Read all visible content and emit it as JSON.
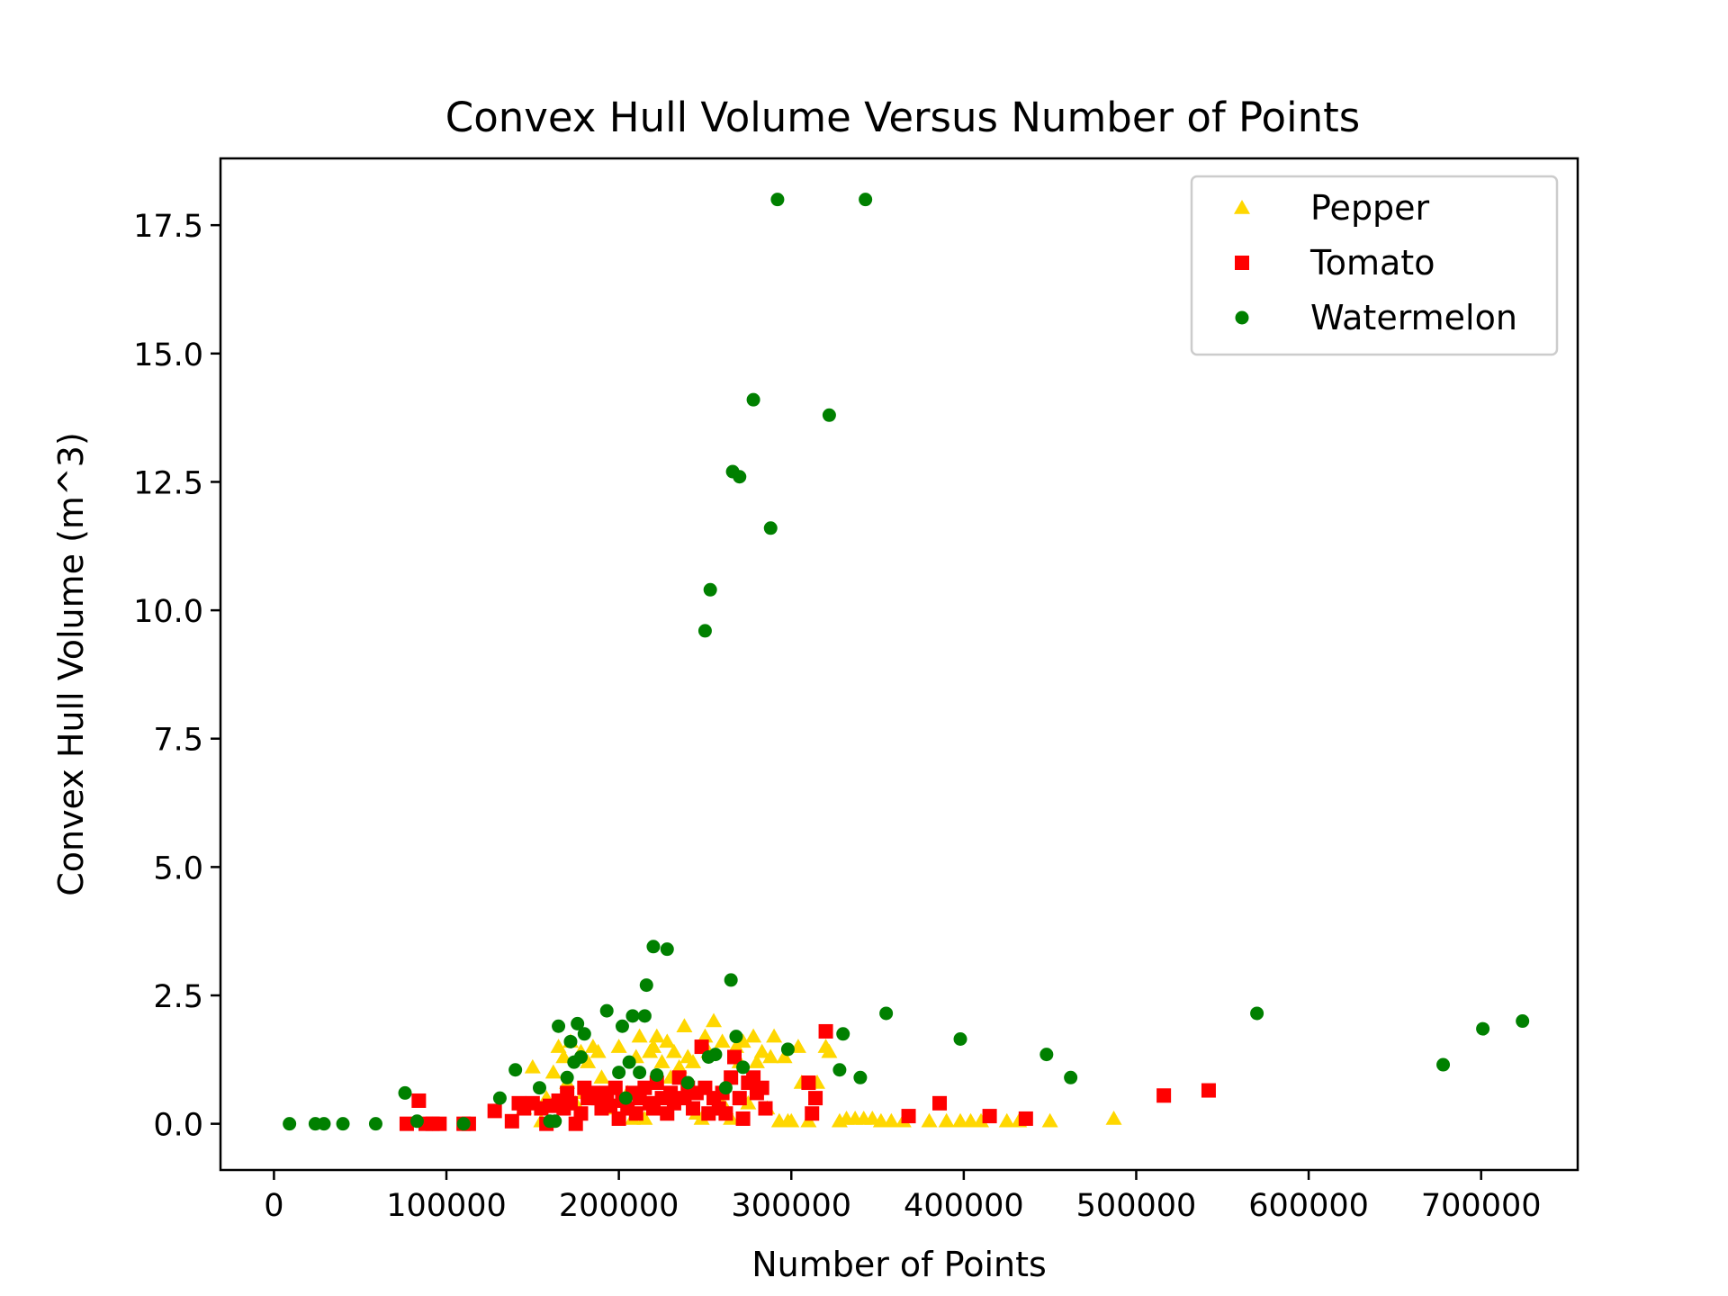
{
  "chart_data": {
    "type": "scatter",
    "title": "Convex Hull Volume Versus Number of Points",
    "xlabel": "Number of Points",
    "ylabel": "Convex Hull Volume (m^3)",
    "xlim": [
      -31000,
      756000
    ],
    "ylim": [
      -0.9,
      18.8
    ],
    "xticks": [
      0,
      100000,
      200000,
      300000,
      400000,
      500000,
      600000,
      700000
    ],
    "xtick_labels": [
      "0",
      "100000",
      "200000",
      "300000",
      "400000",
      "500000",
      "600000",
      "700000"
    ],
    "yticks": [
      0.0,
      2.5,
      5.0,
      7.5,
      10.0,
      12.5,
      15.0,
      17.5
    ],
    "ytick_labels": [
      "0.0",
      "2.5",
      "5.0",
      "7.5",
      "10.0",
      "12.5",
      "15.0",
      "17.5"
    ],
    "grid": false,
    "legend_position": "top-right",
    "series": [
      {
        "name": "Pepper",
        "marker": "triangle",
        "color": "#ffd700",
        "points": [
          [
            145000,
            0.3
          ],
          [
            150000,
            1.1
          ],
          [
            155000,
            0.05
          ],
          [
            158000,
            0.5
          ],
          [
            162000,
            1.0
          ],
          [
            165000,
            1.5
          ],
          [
            168000,
            1.3
          ],
          [
            170000,
            0.8
          ],
          [
            172000,
            1.6
          ],
          [
            175000,
            0.4
          ],
          [
            178000,
            1.4
          ],
          [
            180000,
            0.6
          ],
          [
            182000,
            1.2
          ],
          [
            185000,
            1.5
          ],
          [
            188000,
            1.4
          ],
          [
            190000,
            0.9
          ],
          [
            195000,
            0.3
          ],
          [
            200000,
            1.5
          ],
          [
            205000,
            0.6
          ],
          [
            208000,
            0.1
          ],
          [
            210000,
            1.3
          ],
          [
            212000,
            1.7
          ],
          [
            215000,
            0.1
          ],
          [
            218000,
            1.4
          ],
          [
            220000,
            1.5
          ],
          [
            222000,
            1.7
          ],
          [
            225000,
            1.2
          ],
          [
            228000,
            1.6
          ],
          [
            230000,
            0.9
          ],
          [
            232000,
            1.4
          ],
          [
            235000,
            1.1
          ],
          [
            238000,
            1.9
          ],
          [
            240000,
            1.3
          ],
          [
            243000,
            1.2
          ],
          [
            245000,
            0.2
          ],
          [
            248000,
            0.1
          ],
          [
            250000,
            1.7
          ],
          [
            252000,
            1.4
          ],
          [
            255000,
            2.0
          ],
          [
            258000,
            0.5
          ],
          [
            260000,
            1.6
          ],
          [
            262000,
            0.3
          ],
          [
            265000,
            0.1
          ],
          [
            268000,
            1.5
          ],
          [
            270000,
            1.2
          ],
          [
            272000,
            1.6
          ],
          [
            275000,
            0.4
          ],
          [
            278000,
            1.7
          ],
          [
            280000,
            1.2
          ],
          [
            283000,
            1.4
          ],
          [
            286000,
            0.3
          ],
          [
            288000,
            1.3
          ],
          [
            290000,
            1.7
          ],
          [
            293000,
            0.05
          ],
          [
            296000,
            1.3
          ],
          [
            298000,
            0.05
          ],
          [
            300000,
            0.05
          ],
          [
            304000,
            1.5
          ],
          [
            306000,
            0.8
          ],
          [
            310000,
            0.05
          ],
          [
            315000,
            0.8
          ],
          [
            320000,
            1.5
          ],
          [
            322000,
            1.4
          ],
          [
            328000,
            0.05
          ],
          [
            332000,
            0.1
          ],
          [
            337000,
            0.1
          ],
          [
            342000,
            0.1
          ],
          [
            347000,
            0.1
          ],
          [
            352000,
            0.05
          ],
          [
            358000,
            0.05
          ],
          [
            365000,
            0.05
          ],
          [
            380000,
            0.05
          ],
          [
            390000,
            0.05
          ],
          [
            398000,
            0.05
          ],
          [
            404000,
            0.05
          ],
          [
            410000,
            0.05
          ],
          [
            425000,
            0.05
          ],
          [
            432000,
            0.05
          ],
          [
            450000,
            0.05
          ],
          [
            487000,
            0.1
          ]
        ]
      },
      {
        "name": "Tomato",
        "marker": "square",
        "color": "#ff0000",
        "points": [
          [
            77000,
            0.0
          ],
          [
            84000,
            0.45
          ],
          [
            88000,
            0.0
          ],
          [
            92000,
            0.0
          ],
          [
            96000,
            0.0
          ],
          [
            110000,
            0.0
          ],
          [
            113000,
            0.0
          ],
          [
            128000,
            0.25
          ],
          [
            138000,
            0.05
          ],
          [
            142000,
            0.4
          ],
          [
            145000,
            0.3
          ],
          [
            150000,
            0.4
          ],
          [
            155000,
            0.3
          ],
          [
            158000,
            0.0
          ],
          [
            160000,
            0.35
          ],
          [
            165000,
            0.45
          ],
          [
            168000,
            0.3
          ],
          [
            170000,
            0.6
          ],
          [
            172000,
            0.4
          ],
          [
            175000,
            0.0
          ],
          [
            178000,
            0.2
          ],
          [
            180000,
            0.7
          ],
          [
            182000,
            0.5
          ],
          [
            185000,
            0.6
          ],
          [
            188000,
            0.5
          ],
          [
            190000,
            0.3
          ],
          [
            193000,
            0.6
          ],
          [
            195000,
            0.35
          ],
          [
            198000,
            0.7
          ],
          [
            200000,
            0.1
          ],
          [
            202000,
            0.45
          ],
          [
            205000,
            0.3
          ],
          [
            208000,
            0.6
          ],
          [
            210000,
            0.2
          ],
          [
            212000,
            0.5
          ],
          [
            215000,
            0.7
          ],
          [
            218000,
            0.4
          ],
          [
            220000,
            0.3
          ],
          [
            222000,
            0.8
          ],
          [
            225000,
            0.5
          ],
          [
            228000,
            0.2
          ],
          [
            230000,
            0.6
          ],
          [
            232000,
            0.4
          ],
          [
            235000,
            0.9
          ],
          [
            238000,
            0.5
          ],
          [
            240000,
            0.7
          ],
          [
            243000,
            0.3
          ],
          [
            245000,
            0.6
          ],
          [
            248000,
            1.5
          ],
          [
            250000,
            0.7
          ],
          [
            252000,
            0.2
          ],
          [
            255000,
            0.5
          ],
          [
            258000,
            0.3
          ],
          [
            260000,
            0.6
          ],
          [
            262000,
            0.2
          ],
          [
            265000,
            0.9
          ],
          [
            267000,
            1.3
          ],
          [
            270000,
            0.5
          ],
          [
            272000,
            0.1
          ],
          [
            275000,
            0.8
          ],
          [
            278000,
            0.9
          ],
          [
            280000,
            0.6
          ],
          [
            283000,
            0.7
          ],
          [
            285000,
            0.3
          ],
          [
            310000,
            0.8
          ],
          [
            312000,
            0.2
          ],
          [
            314000,
            0.5
          ],
          [
            320000,
            1.8
          ],
          [
            368000,
            0.15
          ],
          [
            386000,
            0.4
          ],
          [
            415000,
            0.15
          ],
          [
            436000,
            0.1
          ],
          [
            516000,
            0.55
          ],
          [
            542000,
            0.65
          ]
        ]
      },
      {
        "name": "Watermelon",
        "marker": "circle",
        "color": "#008000",
        "points": [
          [
            9000,
            0.0
          ],
          [
            24000,
            0.0
          ],
          [
            29000,
            0.0
          ],
          [
            40000,
            0.0
          ],
          [
            59000,
            0.0
          ],
          [
            76000,
            0.6
          ],
          [
            83000,
            0.05
          ],
          [
            110000,
            0.0
          ],
          [
            131000,
            0.5
          ],
          [
            140000,
            1.05
          ],
          [
            154000,
            0.7
          ],
          [
            160000,
            0.05
          ],
          [
            163000,
            0.05
          ],
          [
            165000,
            1.9
          ],
          [
            170000,
            0.9
          ],
          [
            172000,
            1.6
          ],
          [
            174000,
            1.2
          ],
          [
            176000,
            1.95
          ],
          [
            178000,
            1.3
          ],
          [
            180000,
            1.75
          ],
          [
            193000,
            2.2
          ],
          [
            200000,
            1.0
          ],
          [
            202000,
            1.9
          ],
          [
            204000,
            0.5
          ],
          [
            206000,
            1.2
          ],
          [
            208000,
            2.1
          ],
          [
            212000,
            1.0
          ],
          [
            215000,
            2.1
          ],
          [
            216000,
            2.7
          ],
          [
            220000,
            3.45
          ],
          [
            222000,
            0.95
          ],
          [
            228000,
            3.4
          ],
          [
            240000,
            0.8
          ],
          [
            250000,
            9.6
          ],
          [
            253000,
            10.4
          ],
          [
            252000,
            1.3
          ],
          [
            256000,
            1.35
          ],
          [
            262000,
            0.7
          ],
          [
            265000,
            2.8
          ],
          [
            266000,
            12.7
          ],
          [
            268000,
            1.7
          ],
          [
            270000,
            12.6
          ],
          [
            272000,
            1.1
          ],
          [
            278000,
            14.1
          ],
          [
            288000,
            11.6
          ],
          [
            292000,
            18.0
          ],
          [
            298000,
            1.45
          ],
          [
            322000,
            13.8
          ],
          [
            328000,
            1.05
          ],
          [
            330000,
            1.75
          ],
          [
            340000,
            0.9
          ],
          [
            343000,
            18.0
          ],
          [
            355000,
            2.15
          ],
          [
            398000,
            1.65
          ],
          [
            448000,
            1.35
          ],
          [
            462000,
            0.9
          ],
          [
            570000,
            2.15
          ],
          [
            678000,
            1.15
          ],
          [
            701000,
            1.85
          ],
          [
            724000,
            2.0
          ]
        ]
      }
    ]
  }
}
